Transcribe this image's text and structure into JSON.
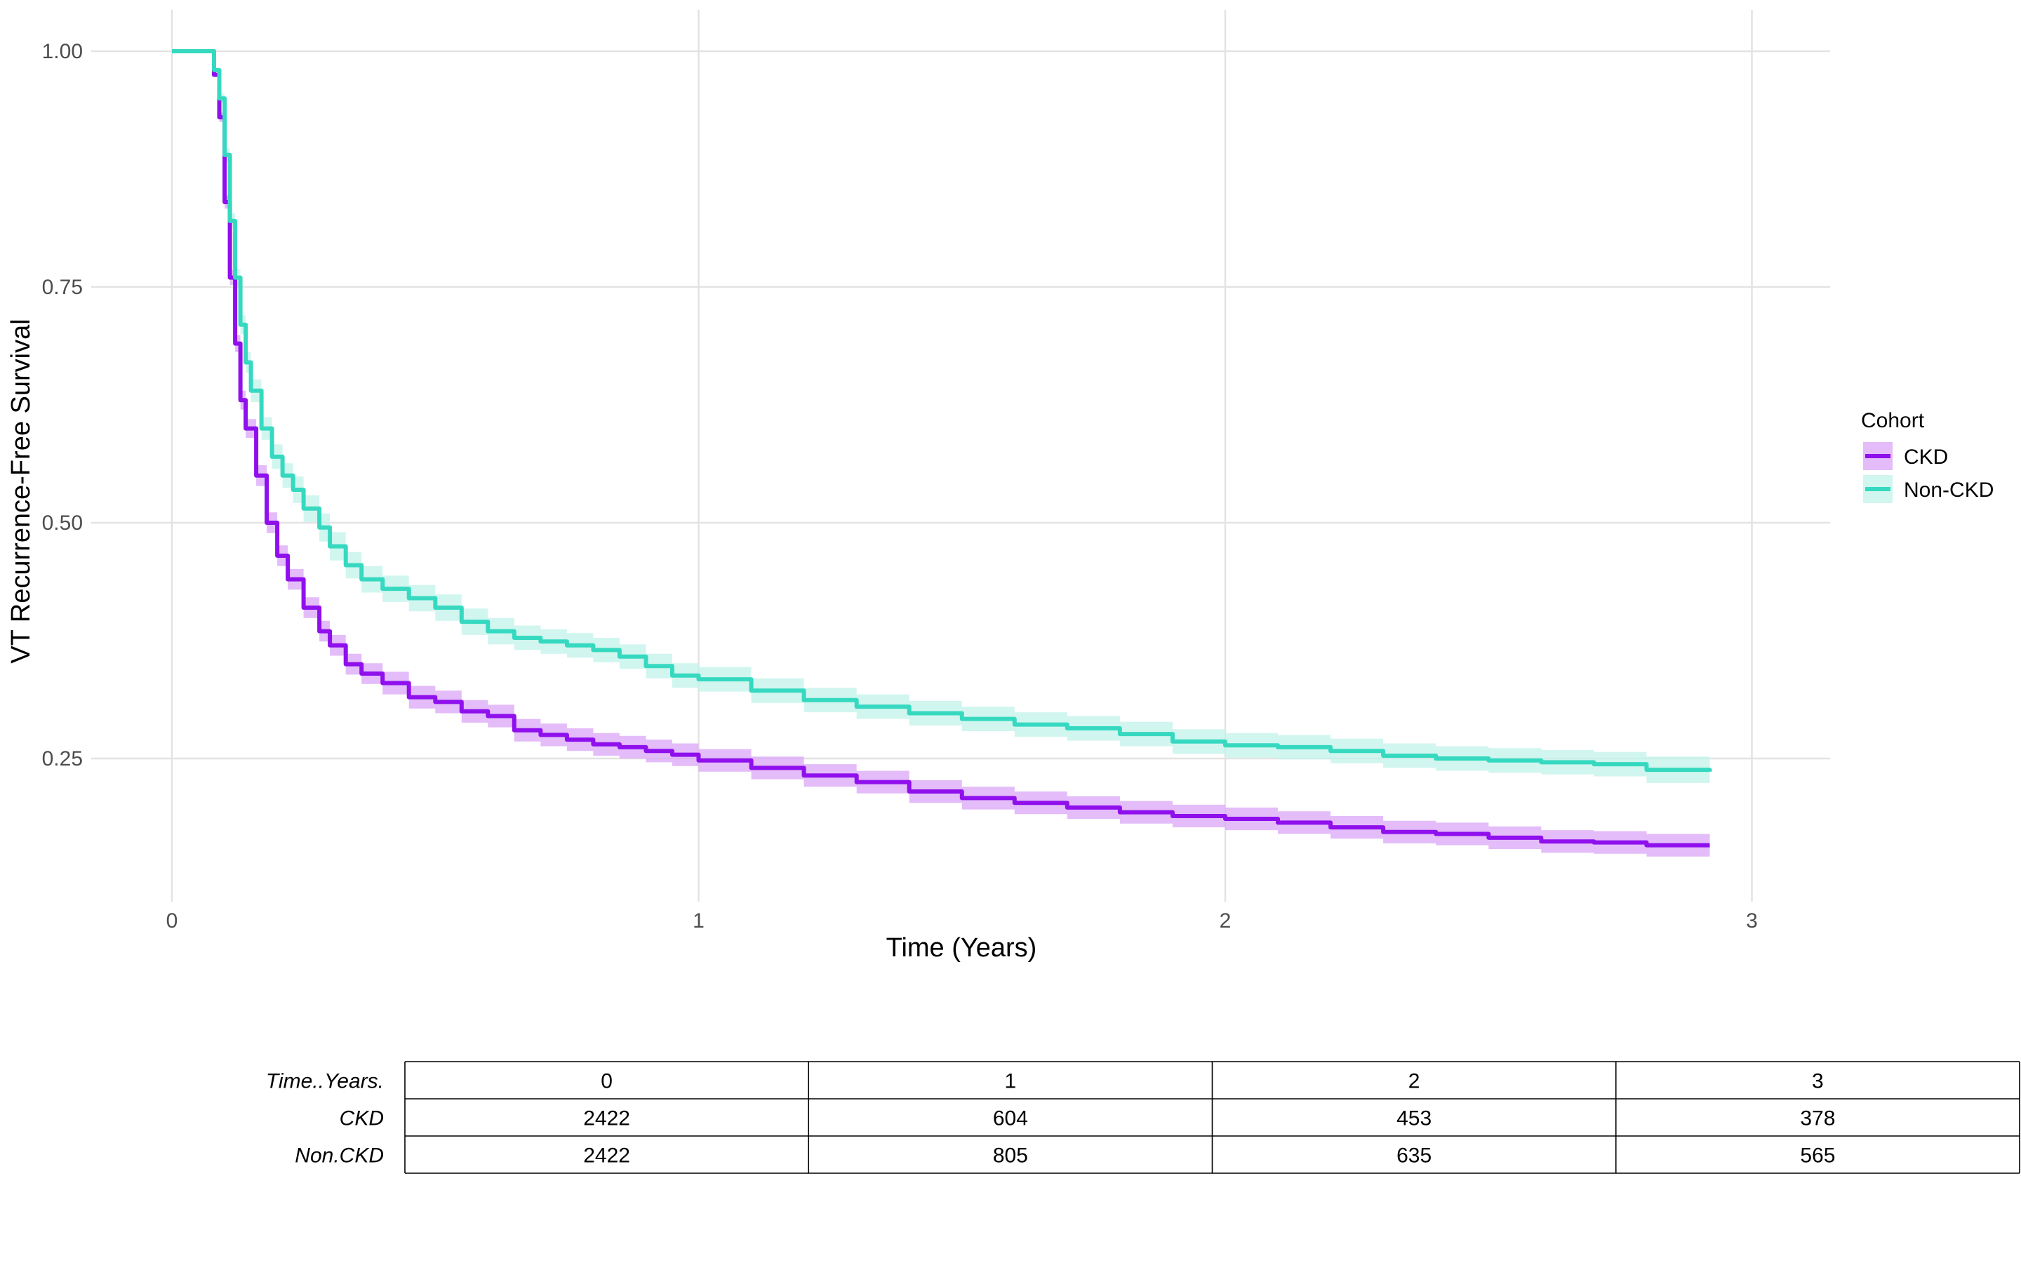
{
  "chart_data": {
    "type": "line",
    "title": "",
    "xlabel": "Time (Years)",
    "ylabel": "VT Recurrence-Free Survival",
    "xlim": [
      -0.3,
      3.15
    ],
    "ylim": [
      0.085,
      1.05
    ],
    "x_ticks": [
      0,
      1,
      2,
      3
    ],
    "y_ticks": [
      0.25,
      0.5,
      0.75,
      1.0
    ],
    "x_tick_labels": [
      "0",
      "1",
      "2",
      "3"
    ],
    "y_tick_labels": [
      "0.25",
      "0.50",
      "0.75",
      "1.00"
    ],
    "grid": true,
    "legend": {
      "title": "Cohort",
      "position": "right"
    },
    "series": [
      {
        "name": "CKD",
        "color": "#8f10ec",
        "band_color": "#d9a6f7",
        "x": [
          0,
          0.08,
          0.09,
          0.1,
          0.11,
          0.12,
          0.13,
          0.14,
          0.16,
          0.18,
          0.2,
          0.22,
          0.25,
          0.28,
          0.3,
          0.33,
          0.36,
          0.4,
          0.45,
          0.5,
          0.55,
          0.6,
          0.65,
          0.7,
          0.75,
          0.8,
          0.85,
          0.9,
          0.95,
          1.0,
          1.1,
          1.2,
          1.3,
          1.4,
          1.5,
          1.6,
          1.7,
          1.8,
          1.9,
          2.0,
          2.1,
          2.2,
          2.3,
          2.4,
          2.5,
          2.6,
          2.7,
          2.8,
          2.92
        ],
        "y": [
          1.0,
          0.975,
          0.93,
          0.84,
          0.76,
          0.69,
          0.63,
          0.6,
          0.55,
          0.5,
          0.465,
          0.44,
          0.41,
          0.385,
          0.37,
          0.35,
          0.34,
          0.33,
          0.315,
          0.31,
          0.3,
          0.295,
          0.28,
          0.275,
          0.27,
          0.265,
          0.262,
          0.258,
          0.254,
          0.248,
          0.24,
          0.232,
          0.225,
          0.215,
          0.208,
          0.203,
          0.198,
          0.193,
          0.189,
          0.186,
          0.182,
          0.177,
          0.172,
          0.17,
          0.166,
          0.162,
          0.161,
          0.158,
          0.158
        ],
        "lower": [
          1.0,
          0.973,
          0.925,
          0.833,
          0.752,
          0.681,
          0.62,
          0.59,
          0.539,
          0.489,
          0.454,
          0.429,
          0.399,
          0.374,
          0.359,
          0.339,
          0.329,
          0.318,
          0.303,
          0.298,
          0.288,
          0.283,
          0.268,
          0.263,
          0.258,
          0.253,
          0.25,
          0.246,
          0.242,
          0.236,
          0.228,
          0.22,
          0.213,
          0.203,
          0.196,
          0.191,
          0.186,
          0.181,
          0.177,
          0.174,
          0.17,
          0.165,
          0.16,
          0.158,
          0.154,
          0.15,
          0.149,
          0.146,
          0.145
        ],
        "upper": [
          1.0,
          0.977,
          0.935,
          0.847,
          0.768,
          0.699,
          0.64,
          0.61,
          0.561,
          0.511,
          0.476,
          0.451,
          0.421,
          0.396,
          0.381,
          0.361,
          0.351,
          0.342,
          0.327,
          0.322,
          0.312,
          0.307,
          0.292,
          0.287,
          0.282,
          0.277,
          0.274,
          0.27,
          0.266,
          0.26,
          0.252,
          0.244,
          0.237,
          0.227,
          0.22,
          0.215,
          0.21,
          0.205,
          0.201,
          0.198,
          0.194,
          0.189,
          0.184,
          0.182,
          0.178,
          0.174,
          0.173,
          0.17,
          0.171
        ]
      },
      {
        "name": "Non-CKD",
        "color": "#36d9c0",
        "band_color": "#c2f3ea",
        "x": [
          0,
          0.08,
          0.09,
          0.1,
          0.11,
          0.12,
          0.13,
          0.14,
          0.15,
          0.17,
          0.19,
          0.21,
          0.23,
          0.25,
          0.28,
          0.3,
          0.33,
          0.36,
          0.4,
          0.45,
          0.5,
          0.55,
          0.6,
          0.65,
          0.7,
          0.75,
          0.8,
          0.85,
          0.9,
          0.95,
          1.0,
          1.1,
          1.2,
          1.3,
          1.4,
          1.5,
          1.6,
          1.7,
          1.8,
          1.9,
          2.0,
          2.1,
          2.2,
          2.3,
          2.4,
          2.5,
          2.6,
          2.7,
          2.8,
          2.92
        ],
        "y": [
          1.0,
          0.98,
          0.95,
          0.89,
          0.82,
          0.76,
          0.71,
          0.67,
          0.64,
          0.6,
          0.57,
          0.55,
          0.535,
          0.515,
          0.495,
          0.475,
          0.455,
          0.44,
          0.43,
          0.42,
          0.41,
          0.395,
          0.385,
          0.378,
          0.374,
          0.37,
          0.365,
          0.358,
          0.348,
          0.338,
          0.334,
          0.322,
          0.312,
          0.305,
          0.298,
          0.292,
          0.286,
          0.282,
          0.276,
          0.268,
          0.264,
          0.262,
          0.258,
          0.253,
          0.25,
          0.248,
          0.246,
          0.244,
          0.238,
          0.236
        ],
        "lower": [
          1.0,
          0.978,
          0.945,
          0.883,
          0.812,
          0.751,
          0.7,
          0.659,
          0.628,
          0.588,
          0.557,
          0.537,
          0.521,
          0.501,
          0.48,
          0.46,
          0.441,
          0.426,
          0.416,
          0.406,
          0.396,
          0.381,
          0.371,
          0.365,
          0.361,
          0.357,
          0.352,
          0.345,
          0.335,
          0.325,
          0.321,
          0.309,
          0.299,
          0.292,
          0.285,
          0.279,
          0.273,
          0.269,
          0.263,
          0.255,
          0.251,
          0.249,
          0.245,
          0.24,
          0.237,
          0.235,
          0.233,
          0.231,
          0.224,
          0.222
        ],
        "upper": [
          1.0,
          0.982,
          0.955,
          0.897,
          0.828,
          0.769,
          0.72,
          0.681,
          0.652,
          0.612,
          0.583,
          0.563,
          0.549,
          0.529,
          0.51,
          0.49,
          0.469,
          0.454,
          0.444,
          0.434,
          0.424,
          0.409,
          0.399,
          0.391,
          0.387,
          0.383,
          0.378,
          0.371,
          0.361,
          0.351,
          0.347,
          0.335,
          0.325,
          0.318,
          0.311,
          0.305,
          0.299,
          0.295,
          0.289,
          0.281,
          0.277,
          0.275,
          0.271,
          0.266,
          0.263,
          0.261,
          0.259,
          0.257,
          0.252,
          0.25
        ]
      }
    ],
    "risk_table": {
      "header_label": "Time..Years.",
      "columns": [
        "0",
        "1",
        "2",
        "3"
      ],
      "rows": [
        {
          "label": "CKD",
          "values": [
            "2422",
            "604",
            "453",
            "378"
          ]
        },
        {
          "label": "Non.CKD",
          "values": [
            "2422",
            "805",
            "635",
            "565"
          ]
        }
      ]
    }
  }
}
